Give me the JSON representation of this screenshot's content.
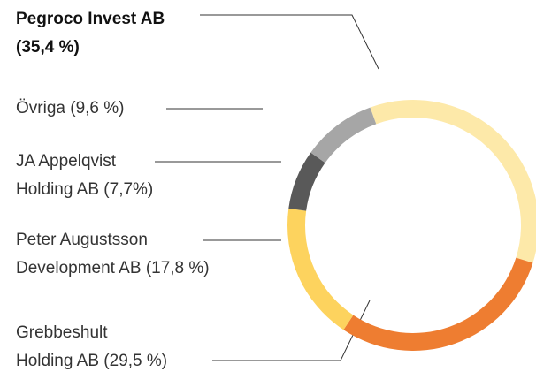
{
  "chart_data": {
    "type": "donut",
    "categories": [
      "Pegroco Invest AB",
      "Grebbeshult Holding AB",
      "Peter Augustsson Development AB",
      "JA Appelqvist Holding AB",
      "Övriga"
    ],
    "values": [
      35.4,
      29.5,
      17.8,
      7.7,
      9.6
    ],
    "value_labels": [
      "(35,4 %)",
      "(29,5 %)",
      "(17,8 %)",
      "(7,7%)",
      "(9,6 %)"
    ],
    "colors": [
      "#fde9a9",
      "#ee7d31",
      "#fdd35e",
      "#595959",
      "#a6a6a6"
    ]
  }
}
